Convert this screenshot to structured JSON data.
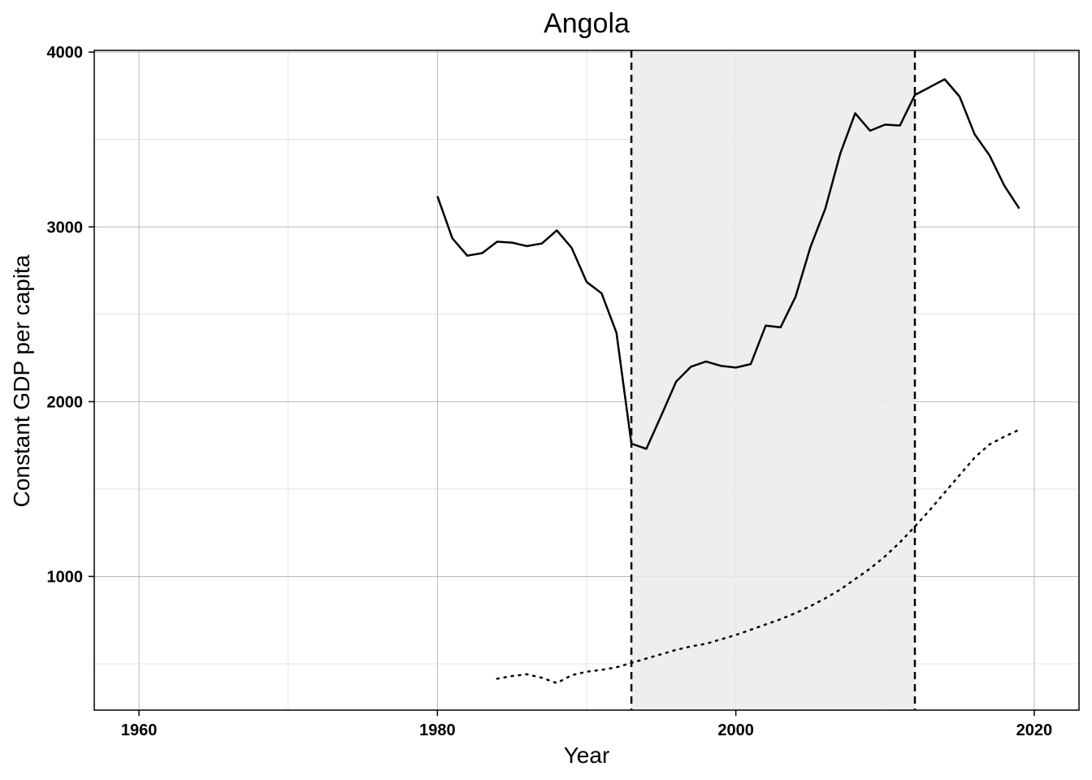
{
  "chart_data": {
    "type": "line",
    "title": "Angola",
    "xlabel": "Year",
    "ylabel": "Constant GDP per capita",
    "xlim": [
      1957,
      2023
    ],
    "ylim": [
      235,
      4010
    ],
    "x_ticks": [
      1960,
      1980,
      2000,
      2020
    ],
    "y_ticks": [
      1000,
      2000,
      3000,
      4000
    ],
    "grid": true,
    "legend": "none",
    "shaded_region": {
      "x_start": 1993,
      "x_end": 2012,
      "color": "#ebebeb"
    },
    "vertical_lines": [
      {
        "x": 1993,
        "style": "dashed"
      },
      {
        "x": 2012,
        "style": "dashed"
      }
    ],
    "series": [
      {
        "style": "solid",
        "x": [
          1980,
          1981,
          1982,
          1983,
          1984,
          1985,
          1986,
          1987,
          1988,
          1989,
          1990,
          1991,
          1992,
          1993,
          1994,
          1995,
          1996,
          1997,
          1998,
          1999,
          2000,
          2001,
          2002,
          2003,
          2004,
          2005,
          2006,
          2007,
          2008,
          2009,
          2010,
          2011,
          2012,
          2013,
          2014,
          2015,
          2016,
          2017,
          2018,
          2019
        ],
        "y": [
          3175,
          2935,
          2835,
          2850,
          2915,
          2910,
          2890,
          2905,
          2980,
          2880,
          2685,
          2620,
          2395,
          1760,
          1730,
          1920,
          2115,
          2200,
          2230,
          2205,
          2195,
          2215,
          2435,
          2425,
          2600,
          2885,
          3105,
          3420,
          3650,
          3550,
          3585,
          3580,
          3755,
          3800,
          3845,
          3745,
          3530,
          3410,
          3235,
          3105
        ]
      },
      {
        "style": "dotted",
        "x": [
          1984,
          1985,
          1986,
          1987,
          1988,
          1989,
          1990,
          1991,
          1992,
          1993,
          1994,
          1995,
          1996,
          1997,
          1998,
          1999,
          2000,
          2001,
          2002,
          2003,
          2004,
          2005,
          2006,
          2007,
          2008,
          2009,
          2010,
          2011,
          2012,
          2013,
          2014,
          2015,
          2016,
          2017,
          2018,
          2019
        ],
        "y": [
          415,
          430,
          440,
          420,
          390,
          435,
          455,
          465,
          480,
          505,
          530,
          555,
          580,
          600,
          615,
          640,
          665,
          695,
          725,
          755,
          790,
          830,
          875,
          925,
          985,
          1045,
          1115,
          1195,
          1285,
          1380,
          1480,
          1580,
          1680,
          1755,
          1800,
          1840
        ]
      }
    ]
  }
}
